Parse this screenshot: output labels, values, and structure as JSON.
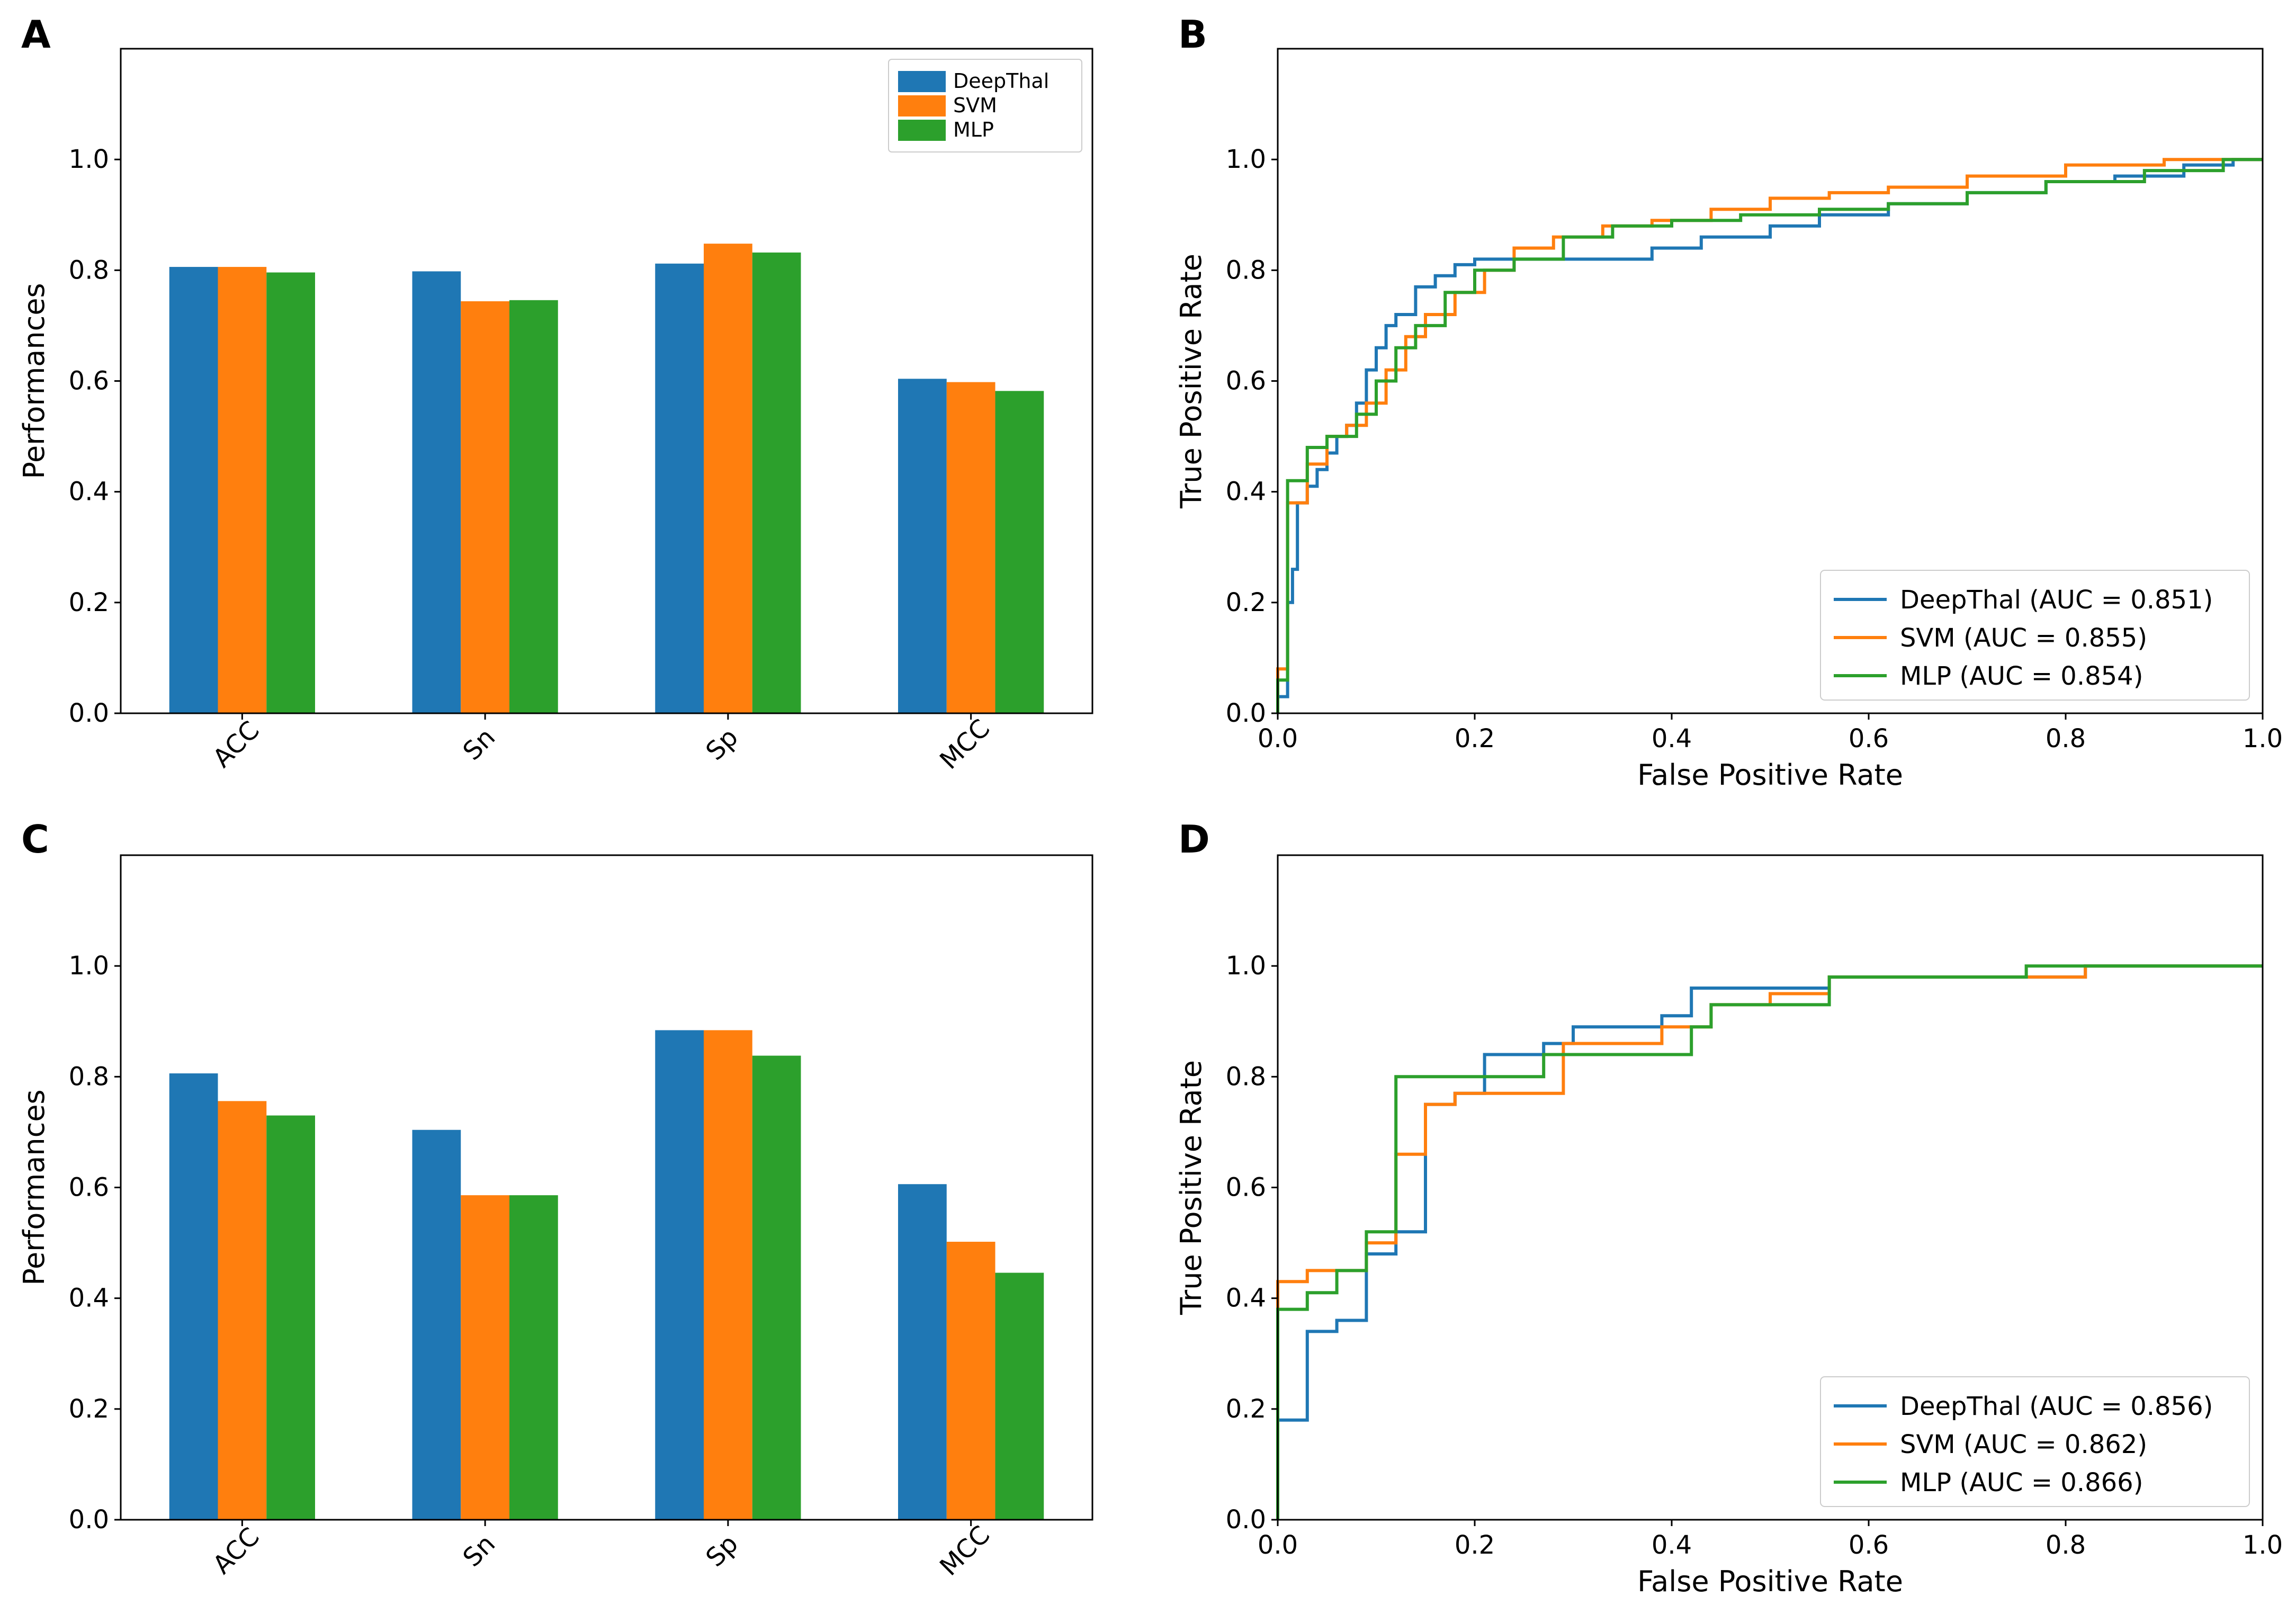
{
  "colors": {
    "deepthal": "#1f77b4",
    "svm": "#ff7f0e",
    "mlp": "#2ca02c"
  },
  "chart_data": [
    {
      "panel": "A",
      "type": "bar",
      "ylabel": "Performances",
      "xlabel": "",
      "ylim": [
        0,
        1.2
      ],
      "yticks": [
        "0.0",
        "0.2",
        "0.4",
        "0.6",
        "0.8",
        "1.0"
      ],
      "categories": [
        "ACC",
        "Sn",
        "Sp",
        "MCC"
      ],
      "legend_position": "top-right",
      "series": [
        {
          "name": "DeepThal",
          "color": "#1f77b4",
          "values": [
            0.806,
            0.798,
            0.812,
            0.604
          ]
        },
        {
          "name": "SVM",
          "color": "#ff7f0e",
          "values": [
            0.806,
            0.744,
            0.848,
            0.598
          ]
        },
        {
          "name": "MLP",
          "color": "#2ca02c",
          "values": [
            0.796,
            0.746,
            0.832,
            0.582
          ]
        }
      ]
    },
    {
      "panel": "B",
      "type": "line",
      "xlabel": "False Positive Rate",
      "ylabel": "True Positive Rate",
      "xlim": [
        0,
        1
      ],
      "ylim": [
        0,
        1.2
      ],
      "xticks": [
        "0.0",
        "0.2",
        "0.4",
        "0.6",
        "0.8",
        "1.0"
      ],
      "yticks": [
        "0.0",
        "0.2",
        "0.4",
        "0.6",
        "0.8",
        "1.0"
      ],
      "legend_position": "bottom-right",
      "series": [
        {
          "name": "DeepThal (AUC = 0.851)",
          "color": "#1f77b4",
          "x": [
            0,
            0,
            0.01,
            0.01,
            0.015,
            0.015,
            0.02,
            0.02,
            0.03,
            0.03,
            0.04,
            0.04,
            0.05,
            0.05,
            0.06,
            0.06,
            0.07,
            0.07,
            0.08,
            0.08,
            0.09,
            0.09,
            0.1,
            0.1,
            0.11,
            0.11,
            0.12,
            0.12,
            0.14,
            0.14,
            0.16,
            0.16,
            0.18,
            0.18,
            0.2,
            0.2,
            0.24,
            0.24,
            0.3,
            0.3,
            0.38,
            0.38,
            0.43,
            0.43,
            0.5,
            0.5,
            0.55,
            0.55,
            0.62,
            0.62,
            0.7,
            0.7,
            0.78,
            0.78,
            0.85,
            0.85,
            0.92,
            0.92,
            0.97,
            0.97,
            1.0
          ],
          "y": [
            0,
            0.03,
            0.03,
            0.2,
            0.2,
            0.26,
            0.26,
            0.38,
            0.38,
            0.41,
            0.41,
            0.44,
            0.44,
            0.47,
            0.47,
            0.5,
            0.5,
            0.52,
            0.52,
            0.56,
            0.56,
            0.62,
            0.62,
            0.66,
            0.66,
            0.7,
            0.7,
            0.72,
            0.72,
            0.77,
            0.77,
            0.79,
            0.79,
            0.81,
            0.81,
            0.82,
            0.82,
            0.82,
            0.82,
            0.82,
            0.82,
            0.84,
            0.84,
            0.86,
            0.86,
            0.88,
            0.88,
            0.9,
            0.9,
            0.92,
            0.92,
            0.94,
            0.94,
            0.96,
            0.96,
            0.97,
            0.97,
            0.99,
            0.99,
            1.0,
            1.0
          ]
        },
        {
          "name": "SVM (AUC = 0.855)",
          "color": "#ff7f0e",
          "x": [
            0,
            0,
            0.01,
            0.01,
            0.03,
            0.03,
            0.05,
            0.05,
            0.07,
            0.07,
            0.09,
            0.09,
            0.11,
            0.11,
            0.13,
            0.13,
            0.15,
            0.15,
            0.18,
            0.18,
            0.21,
            0.21,
            0.24,
            0.24,
            0.28,
            0.28,
            0.33,
            0.33,
            0.38,
            0.38,
            0.44,
            0.44,
            0.5,
            0.5,
            0.56,
            0.56,
            0.62,
            0.62,
            0.7,
            0.7,
            0.8,
            0.8,
            0.9,
            0.9,
            1.0
          ],
          "y": [
            0,
            0.08,
            0.08,
            0.38,
            0.38,
            0.45,
            0.45,
            0.5,
            0.5,
            0.52,
            0.52,
            0.56,
            0.56,
            0.62,
            0.62,
            0.68,
            0.68,
            0.72,
            0.72,
            0.76,
            0.76,
            0.8,
            0.8,
            0.84,
            0.84,
            0.86,
            0.86,
            0.88,
            0.88,
            0.89,
            0.89,
            0.91,
            0.91,
            0.93,
            0.93,
            0.94,
            0.94,
            0.95,
            0.95,
            0.97,
            0.97,
            0.99,
            0.99,
            1.0,
            1.0
          ]
        },
        {
          "name": "MLP (AUC = 0.854)",
          "color": "#2ca02c",
          "x": [
            0,
            0,
            0.01,
            0.01,
            0.03,
            0.03,
            0.05,
            0.05,
            0.08,
            0.08,
            0.1,
            0.1,
            0.12,
            0.12,
            0.14,
            0.14,
            0.17,
            0.17,
            0.2,
            0.2,
            0.24,
            0.24,
            0.29,
            0.29,
            0.34,
            0.34,
            0.4,
            0.4,
            0.47,
            0.47,
            0.55,
            0.55,
            0.62,
            0.62,
            0.7,
            0.7,
            0.78,
            0.78,
            0.88,
            0.88,
            0.96,
            0.96,
            1.0
          ],
          "y": [
            0,
            0.06,
            0.06,
            0.42,
            0.42,
            0.48,
            0.48,
            0.5,
            0.5,
            0.54,
            0.54,
            0.6,
            0.6,
            0.66,
            0.66,
            0.7,
            0.7,
            0.76,
            0.76,
            0.8,
            0.8,
            0.82,
            0.82,
            0.86,
            0.86,
            0.88,
            0.88,
            0.89,
            0.89,
            0.9,
            0.9,
            0.91,
            0.91,
            0.92,
            0.92,
            0.94,
            0.94,
            0.96,
            0.96,
            0.98,
            0.98,
            1.0,
            1.0
          ]
        }
      ]
    },
    {
      "panel": "C",
      "type": "bar",
      "ylabel": "Performances",
      "xlabel": "",
      "ylim": [
        0,
        1.2
      ],
      "yticks": [
        "0.0",
        "0.2",
        "0.4",
        "0.6",
        "0.8",
        "1.0"
      ],
      "categories": [
        "ACC",
        "Sn",
        "Sp",
        "MCC"
      ],
      "series": [
        {
          "name": "DeepThal",
          "color": "#1f77b4",
          "values": [
            0.806,
            0.704,
            0.884,
            0.606
          ]
        },
        {
          "name": "SVM",
          "color": "#ff7f0e",
          "values": [
            0.756,
            0.586,
            0.884,
            0.502
          ]
        },
        {
          "name": "MLP",
          "color": "#2ca02c",
          "values": [
            0.73,
            0.586,
            0.838,
            0.446
          ]
        }
      ]
    },
    {
      "panel": "D",
      "type": "line",
      "xlabel": "False Positive Rate",
      "ylabel": "True Positive Rate",
      "xlim": [
        0,
        1
      ],
      "ylim": [
        0,
        1.2
      ],
      "xticks": [
        "0.0",
        "0.2",
        "0.4",
        "0.6",
        "0.8",
        "1.0"
      ],
      "yticks": [
        "0.0",
        "0.2",
        "0.4",
        "0.6",
        "0.8",
        "1.0"
      ],
      "legend_position": "bottom-right",
      "series": [
        {
          "name": "DeepThal (AUC = 0.856)",
          "color": "#1f77b4",
          "x": [
            0,
            0,
            0.03,
            0.03,
            0.06,
            0.06,
            0.09,
            0.09,
            0.12,
            0.12,
            0.15,
            0.15,
            0.18,
            0.18,
            0.21,
            0.21,
            0.24,
            0.24,
            0.27,
            0.27,
            0.3,
            0.3,
            0.36,
            0.36,
            0.39,
            0.39,
            0.42,
            0.42,
            0.48,
            0.48,
            0.56,
            0.56,
            0.82,
            0.82,
            1.0
          ],
          "y": [
            0,
            0.18,
            0.18,
            0.34,
            0.34,
            0.36,
            0.36,
            0.48,
            0.48,
            0.52,
            0.52,
            0.75,
            0.75,
            0.77,
            0.77,
            0.84,
            0.84,
            0.84,
            0.84,
            0.86,
            0.86,
            0.89,
            0.89,
            0.89,
            0.89,
            0.91,
            0.91,
            0.96,
            0.96,
            0.96,
            0.96,
            0.98,
            0.98,
            1.0,
            1.0
          ]
        },
        {
          "name": "SVM (AUC = 0.862)",
          "color": "#ff7f0e",
          "x": [
            0,
            0,
            0.03,
            0.03,
            0.09,
            0.09,
            0.12,
            0.12,
            0.15,
            0.15,
            0.18,
            0.18,
            0.29,
            0.29,
            0.33,
            0.33,
            0.39,
            0.39,
            0.42,
            0.42,
            0.44,
            0.44,
            0.5,
            0.5,
            0.56,
            0.56,
            0.82,
            0.82,
            1.0
          ],
          "y": [
            0,
            0.43,
            0.43,
            0.45,
            0.45,
            0.5,
            0.5,
            0.66,
            0.66,
            0.75,
            0.75,
            0.77,
            0.77,
            0.86,
            0.86,
            0.86,
            0.86,
            0.89,
            0.89,
            0.89,
            0.89,
            0.93,
            0.93,
            0.95,
            0.95,
            0.98,
            0.98,
            1.0,
            1.0
          ]
        },
        {
          "name": "MLP (AUC = 0.866)",
          "color": "#2ca02c",
          "x": [
            0,
            0,
            0.03,
            0.03,
            0.06,
            0.06,
            0.09,
            0.09,
            0.12,
            0.12,
            0.2,
            0.2,
            0.27,
            0.27,
            0.42,
            0.42,
            0.44,
            0.44,
            0.56,
            0.56,
            0.76,
            0.76,
            1.0
          ],
          "y": [
            0,
            0.38,
            0.38,
            0.41,
            0.41,
            0.45,
            0.45,
            0.52,
            0.52,
            0.8,
            0.8,
            0.8,
            0.8,
            0.84,
            0.84,
            0.89,
            0.89,
            0.93,
            0.93,
            0.98,
            0.98,
            1.0,
            1.0
          ]
        }
      ]
    }
  ]
}
